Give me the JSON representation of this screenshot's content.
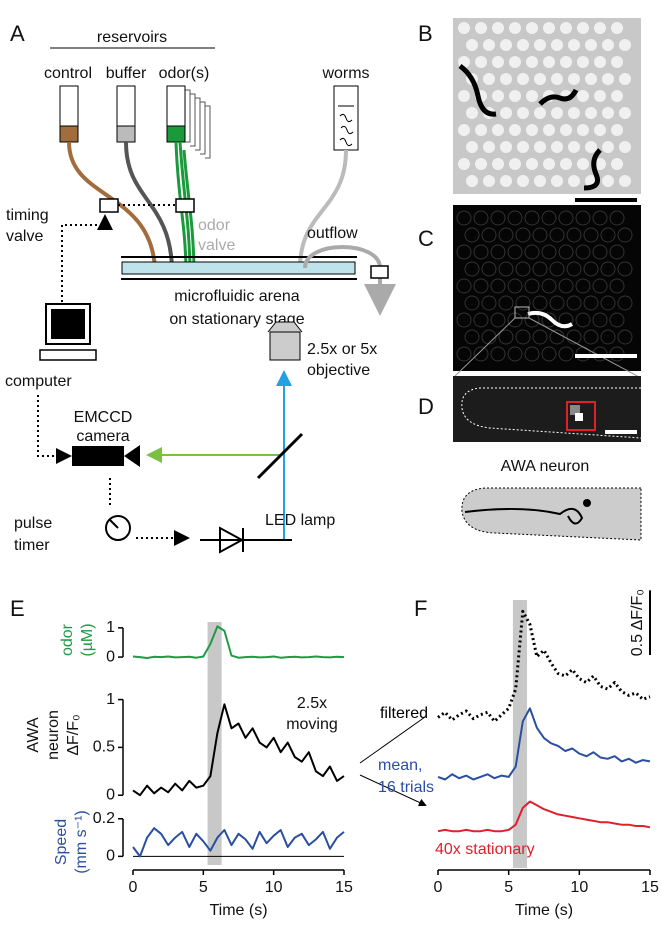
{
  "panel_labels": [
    "A",
    "B",
    "C",
    "D",
    "E",
    "F"
  ],
  "schematic": {
    "reservoirs": "reservoirs",
    "control": "control",
    "buffer": "buffer",
    "odors": "odor(s)",
    "worms": "worms",
    "odor_valve": [
      "odor",
      "valve"
    ],
    "timing_valve": [
      "timing",
      "valve"
    ],
    "outflow": "outflow",
    "arena": [
      "microfluidic arena",
      "on stationary stage"
    ],
    "computer": "computer",
    "objective": [
      "2.5x or 5x",
      "objective"
    ],
    "camera": [
      "EMCCD",
      "camera"
    ],
    "pulse_timer": [
      "pulse",
      "timer"
    ],
    "led": "LED lamp",
    "awa_neuron": "AWA neuron"
  },
  "chart_data": [
    {
      "type": "line",
      "ylabel": [
        "odor",
        "(µM)"
      ],
      "ylim": [
        -0.1,
        1.2
      ],
      "yticks": [
        0,
        1
      ],
      "xlim": [
        0,
        15
      ],
      "shade": [
        5.3,
        6.3
      ],
      "x": [
        0,
        0.5,
        1,
        1.5,
        2,
        2.5,
        3,
        3.5,
        4,
        4.5,
        5,
        5.5,
        6,
        6.5,
        7,
        7.5,
        8,
        8.5,
        9,
        9.5,
        10,
        10.5,
        11,
        11.5,
        12,
        12.5,
        13,
        13.5,
        14,
        14.5,
        15
      ],
      "series": [
        {
          "color": "#1f9a45",
          "values": [
            0.02,
            0,
            -0.03,
            0.01,
            0,
            0.02,
            -0.01,
            0,
            0.01,
            -0.02,
            0.02,
            0.45,
            1.05,
            0.9,
            0.05,
            -0.02,
            0,
            0.01,
            -0.01,
            0,
            0.02,
            -0.02,
            0,
            0.01,
            -0.01,
            0,
            0.02,
            0,
            -0.01,
            0.01,
            0
          ]
        }
      ]
    },
    {
      "type": "line",
      "ylabel": [
        "AWA",
        "neuron",
        "ΔF/F₀"
      ],
      "ylim": [
        -0.05,
        1.1
      ],
      "yticks": [
        0,
        0.5,
        1
      ],
      "xlim": [
        0,
        15
      ],
      "shade": [
        5.3,
        6.3
      ],
      "annotation": [
        "2.5x",
        "moving"
      ],
      "x": [
        0,
        0.5,
        1,
        1.5,
        2,
        2.5,
        3,
        3.5,
        4,
        4.5,
        5,
        5.5,
        6,
        6.5,
        7,
        7.5,
        8,
        8.5,
        9,
        9.5,
        10,
        10.5,
        11,
        11.5,
        12,
        12.5,
        13,
        13.5,
        14,
        14.5,
        15
      ],
      "series": [
        {
          "color": "#000000",
          "values": [
            0.05,
            0,
            0.1,
            0.02,
            0.08,
            0.03,
            0.12,
            0.05,
            0.15,
            0.08,
            0.1,
            0.2,
            0.65,
            0.95,
            0.7,
            0.75,
            0.6,
            0.7,
            0.55,
            0.5,
            0.6,
            0.45,
            0.55,
            0.4,
            0.35,
            0.45,
            0.25,
            0.2,
            0.3,
            0.15,
            0.2
          ]
        }
      ]
    },
    {
      "type": "line",
      "ylabel": [
        "Speed",
        "(mm s⁻¹)"
      ],
      "ylim": [
        -0.03,
        0.22
      ],
      "yticks": [
        0,
        0.2
      ],
      "xlim": [
        0,
        15
      ],
      "xticks": [
        0,
        5,
        10,
        15
      ],
      "xlabel": "Time (s)",
      "shade": [
        5.3,
        6.3
      ],
      "zero_line": true,
      "x": [
        0,
        0.5,
        1,
        1.5,
        2,
        2.5,
        3,
        3.5,
        4,
        4.5,
        5,
        5.5,
        6,
        6.5,
        7,
        7.5,
        8,
        8.5,
        9,
        9.5,
        10,
        10.5,
        11,
        11.5,
        12,
        12.5,
        13,
        13.5,
        14,
        14.5,
        15
      ],
      "series": [
        {
          "color": "#2b4fa0",
          "values": [
            0.05,
            0.0,
            0.1,
            0.15,
            0.12,
            0.06,
            0.1,
            0.13,
            0.05,
            0.12,
            0.08,
            0.03,
            0.1,
            0.14,
            0.06,
            0.12,
            0.09,
            0.04,
            0.13,
            0.07,
            0.11,
            0.14,
            0.05,
            0.1,
            0.12,
            0.06,
            0.09,
            0.13,
            0.04,
            0.1,
            0.13
          ]
        }
      ]
    },
    {
      "type": "line",
      "ylim": [
        -0.3,
        1.85
      ],
      "xlim": [
        0,
        15
      ],
      "xticks": [
        0,
        5,
        10,
        15
      ],
      "xlabel": "Time (s)",
      "shade": [
        5.3,
        6.3
      ],
      "scalebar": {
        "value": 0.5,
        "label": "0.5 ΔF/F₀"
      },
      "x": [
        0,
        0.5,
        1,
        1.5,
        2,
        2.5,
        3,
        3.5,
        4,
        4.5,
        5,
        5.5,
        6,
        6.5,
        7,
        7.5,
        8,
        8.5,
        9,
        9.5,
        10,
        10.5,
        11,
        11.5,
        12,
        12.5,
        13,
        13.5,
        14,
        14.5,
        15
      ],
      "series": [
        {
          "name": "filtered",
          "color": "#000000",
          "style": "dotted",
          "values": [
            0.88,
            0.92,
            0.86,
            0.9,
            0.93,
            0.87,
            0.9,
            0.92,
            0.85,
            0.9,
            0.95,
            1.1,
            1.7,
            1.6,
            1.35,
            1.4,
            1.3,
            1.22,
            1.2,
            1.25,
            1.18,
            1.15,
            1.2,
            1.12,
            1.1,
            1.15,
            1.08,
            1.05,
            1.07,
            1.02,
            1.04
          ]
        },
        {
          "name": "mean, 16 trials",
          "color": "#2b4fa0",
          "values": [
            0.42,
            0.4,
            0.44,
            0.41,
            0.43,
            0.4,
            0.42,
            0.44,
            0.41,
            0.43,
            0.42,
            0.5,
            0.85,
            0.95,
            0.8,
            0.72,
            0.68,
            0.66,
            0.62,
            0.64,
            0.6,
            0.58,
            0.61,
            0.57,
            0.56,
            0.58,
            0.54,
            0.56,
            0.53,
            0.55,
            0.54
          ]
        },
        {
          "name": "40x stationary",
          "color": "#e0202a",
          "values": [
            0,
            0.01,
            0,
            0,
            0.01,
            0,
            0,
            0.01,
            0,
            0,
            0.01,
            0.05,
            0.18,
            0.23,
            0.2,
            0.17,
            0.15,
            0.13,
            0.12,
            0.11,
            0.1,
            0.09,
            0.08,
            0.07,
            0.07,
            0.06,
            0.05,
            0.05,
            0.04,
            0.04,
            0.03
          ]
        }
      ]
    }
  ]
}
